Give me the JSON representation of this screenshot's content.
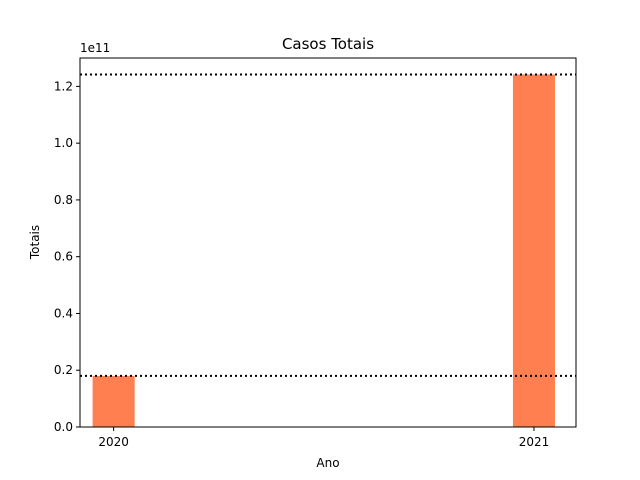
{
  "chart_data": {
    "type": "bar",
    "title": "Casos Totais",
    "xlabel": "Ano",
    "ylabel": "Totais",
    "y_scale_label": "1e11",
    "categories": [
      "2020",
      "2021"
    ],
    "x": [
      2020,
      2021
    ],
    "values": [
      18000000000,
      124200000000
    ],
    "ylim": [
      0,
      130000000000
    ],
    "xlim": [
      2019.92,
      2021.1
    ],
    "yticks": [
      0,
      20000000000,
      40000000000,
      60000000000,
      80000000000,
      100000000000,
      120000000000
    ],
    "ytick_labels": [
      "0.0",
      "0.2",
      "0.4",
      "0.6",
      "0.8",
      "1.0",
      "1.2"
    ],
    "reference_lines": [
      {
        "y": 18000000000,
        "style": "dotted"
      },
      {
        "y": 124200000000,
        "style": "dotted"
      }
    ],
    "bar_color": "#ff7f50",
    "line_color": "#000000",
    "grid": false
  }
}
